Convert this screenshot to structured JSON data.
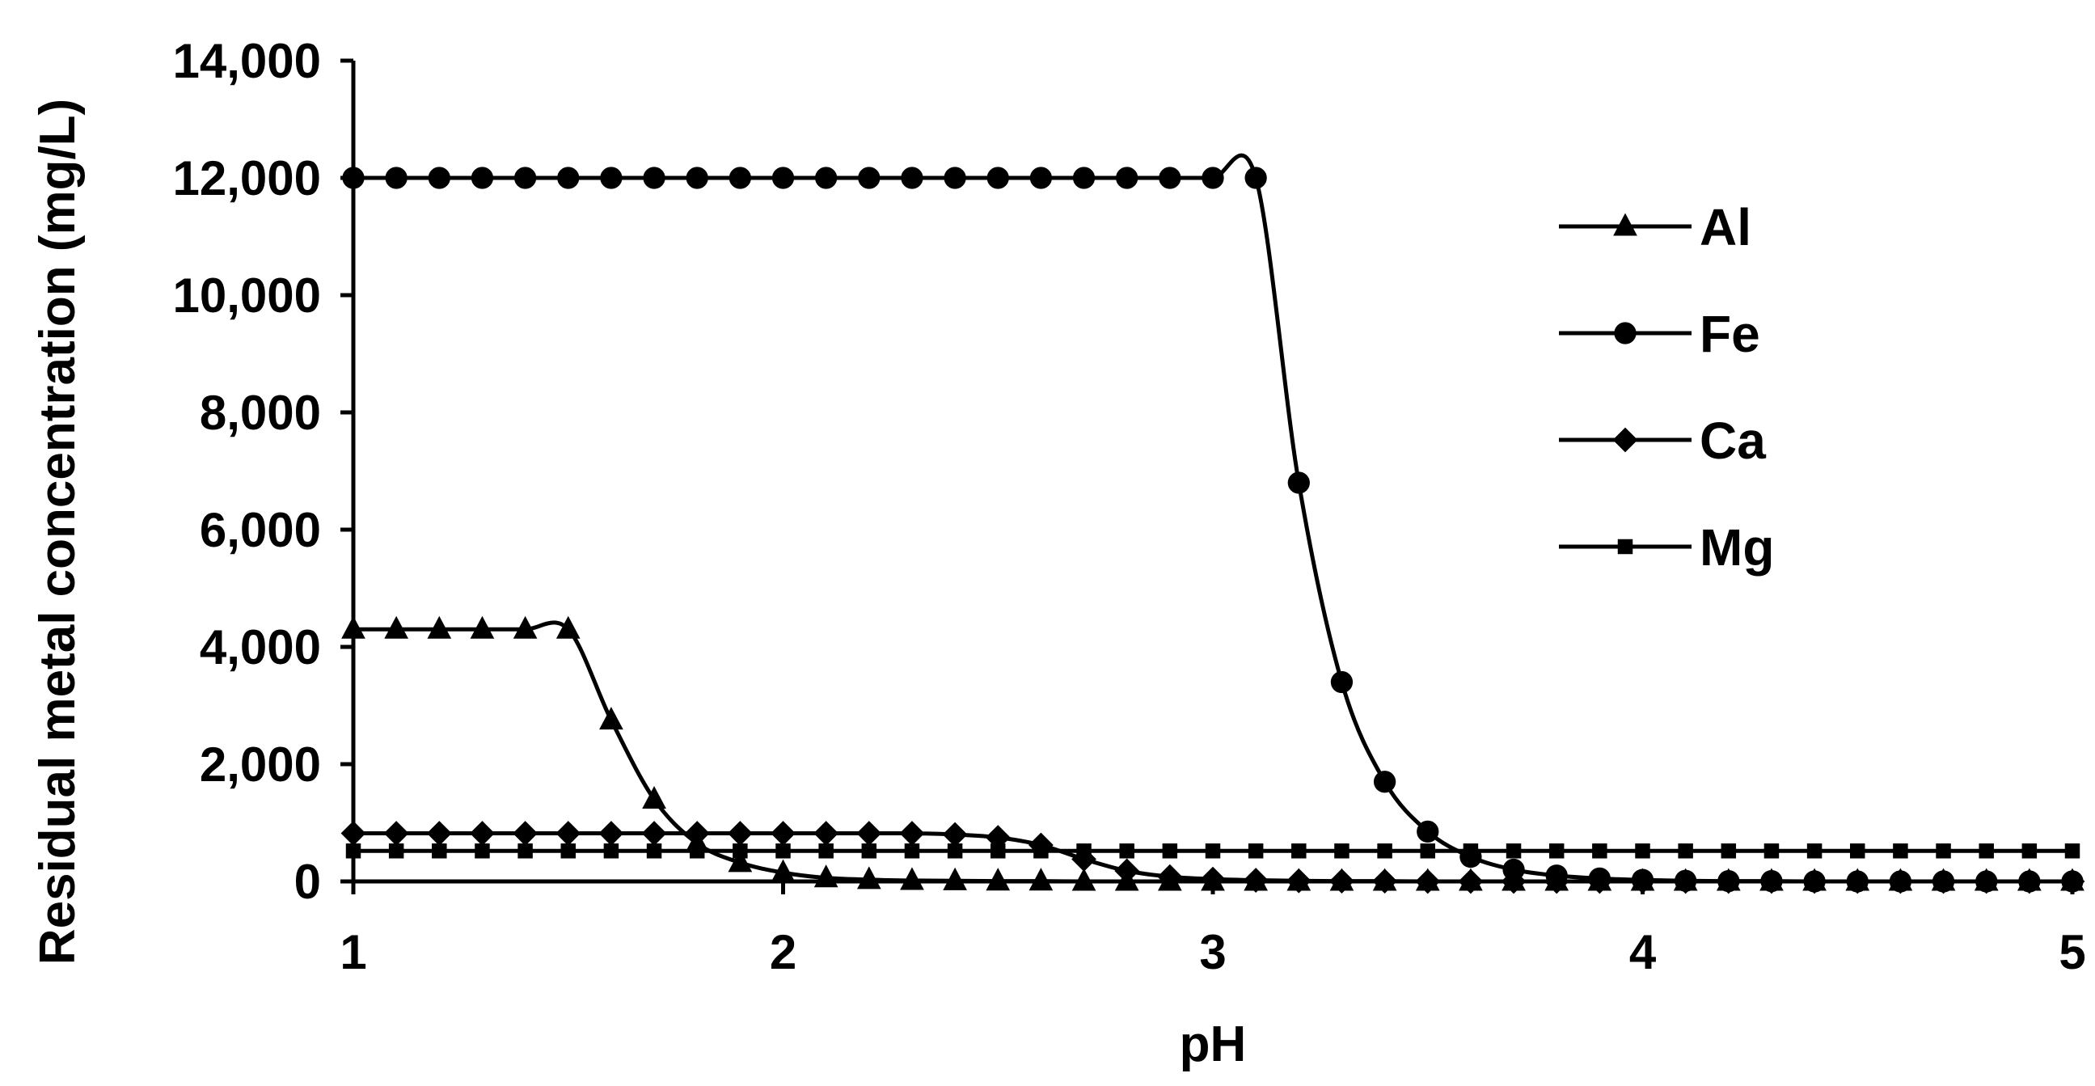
{
  "chart_data": {
    "type": "line",
    "title": "",
    "xlabel": "pH",
    "ylabel": "Residual metal concentration (mg/L)",
    "xlim": [
      1,
      5
    ],
    "ylim": [
      0,
      14000
    ],
    "x_ticks": [
      "1",
      "2",
      "3",
      "4",
      "5"
    ],
    "y_ticks": [
      "0",
      "2,000",
      "4,000",
      "6,000",
      "8,000",
      "10,000",
      "12,000",
      "14,000"
    ],
    "grid": false,
    "legend_position": "right",
    "series": [
      {
        "name": "Al",
        "marker": "triangle",
        "x": [
          1.0,
          1.1,
          1.2,
          1.3,
          1.4,
          1.5,
          1.6,
          1.7,
          1.8,
          1.9,
          2.0,
          2.1,
          2.2,
          2.3,
          2.4,
          2.5,
          2.6,
          2.7,
          2.8,
          2.9,
          3.0,
          3.1,
          3.2,
          3.3,
          3.4,
          3.5,
          3.6,
          3.7,
          3.8,
          3.9,
          4.0,
          4.1,
          4.2,
          4.3,
          4.4,
          4.5,
          4.6,
          4.7,
          4.8,
          4.9,
          5.0
        ],
        "y": [
          4300,
          4300,
          4300,
          4300,
          4300,
          4300,
          2750,
          1400,
          650,
          320,
          150,
          60,
          30,
          15,
          10,
          5,
          5,
          0,
          0,
          0,
          0,
          0,
          0,
          0,
          0,
          0,
          0,
          0,
          0,
          0,
          0,
          0,
          0,
          0,
          0,
          0,
          0,
          0,
          0,
          0,
          0
        ]
      },
      {
        "name": "Fe",
        "marker": "circle",
        "x": [
          1.0,
          1.1,
          1.2,
          1.3,
          1.4,
          1.5,
          1.6,
          1.7,
          1.8,
          1.9,
          2.0,
          2.1,
          2.2,
          2.3,
          2.4,
          2.5,
          2.6,
          2.7,
          2.8,
          2.9,
          3.0,
          3.1,
          3.2,
          3.3,
          3.4,
          3.5,
          3.6,
          3.7,
          3.8,
          3.9,
          4.0,
          4.1,
          4.2,
          4.3,
          4.4,
          4.5,
          4.6,
          4.7,
          4.8,
          4.9,
          5.0
        ],
        "y": [
          12000,
          12000,
          12000,
          12000,
          12000,
          12000,
          12000,
          12000,
          12000,
          12000,
          12000,
          12000,
          12000,
          12000,
          12000,
          12000,
          12000,
          12000,
          12000,
          12000,
          12000,
          12000,
          6800,
          3400,
          1700,
          850,
          420,
          200,
          100,
          50,
          25,
          10,
          5,
          5,
          0,
          0,
          0,
          0,
          0,
          0,
          0
        ]
      },
      {
        "name": "Ca",
        "marker": "diamond",
        "x": [
          1.0,
          1.1,
          1.2,
          1.3,
          1.4,
          1.5,
          1.6,
          1.7,
          1.8,
          1.9,
          2.0,
          2.1,
          2.2,
          2.3,
          2.4,
          2.5,
          2.6,
          2.7,
          2.8,
          2.9,
          3.0,
          3.1,
          3.2,
          3.3,
          3.4,
          3.5,
          3.6,
          3.7,
          3.8,
          3.9,
          4.0,
          4.1,
          4.2,
          4.3,
          4.4,
          4.5,
          4.6,
          4.7,
          4.8,
          4.9,
          5.0
        ],
        "y": [
          820,
          820,
          820,
          820,
          820,
          820,
          820,
          820,
          820,
          820,
          820,
          820,
          820,
          820,
          800,
          750,
          620,
          380,
          180,
          80,
          40,
          20,
          10,
          5,
          5,
          0,
          0,
          0,
          0,
          0,
          0,
          0,
          0,
          0,
          0,
          0,
          0,
          0,
          0,
          0,
          0
        ]
      },
      {
        "name": "Mg",
        "marker": "square",
        "x": [
          1.0,
          1.1,
          1.2,
          1.3,
          1.4,
          1.5,
          1.6,
          1.7,
          1.8,
          1.9,
          2.0,
          2.1,
          2.2,
          2.3,
          2.4,
          2.5,
          2.6,
          2.7,
          2.8,
          2.9,
          3.0,
          3.1,
          3.2,
          3.3,
          3.4,
          3.5,
          3.6,
          3.7,
          3.8,
          3.9,
          4.0,
          4.1,
          4.2,
          4.3,
          4.4,
          4.5,
          4.6,
          4.7,
          4.8,
          4.9,
          5.0
        ],
        "y": [
          520,
          520,
          520,
          520,
          520,
          520,
          520,
          520,
          520,
          520,
          520,
          520,
          520,
          520,
          520,
          520,
          520,
          520,
          520,
          520,
          520,
          520,
          520,
          520,
          520,
          520,
          520,
          520,
          520,
          520,
          520,
          520,
          520,
          520,
          520,
          520,
          520,
          520,
          520,
          520,
          520
        ]
      }
    ]
  }
}
